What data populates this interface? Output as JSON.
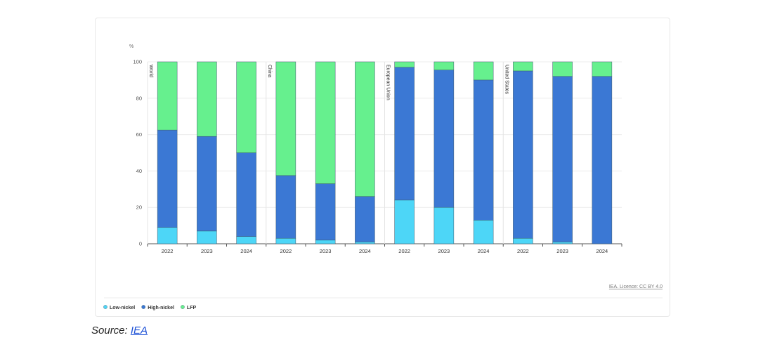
{
  "licence_text": "IEA. Licence: CC BY 4.0",
  "source": {
    "label": "Source:",
    "link_text": "IEA"
  },
  "colors": {
    "Low-nickel": "#4dd6f7",
    "High-nickel": "#3b78d4",
    "LFP": "#66f08e"
  },
  "chart_data": {
    "type": "bar",
    "stacked": true,
    "ylabel": "%",
    "ylim": [
      0,
      100
    ],
    "yticks": [
      0,
      20,
      40,
      60,
      80,
      100
    ],
    "grid": true,
    "legend_position": "bottom-left",
    "groups": [
      "World",
      "China",
      "European Union",
      "United States"
    ],
    "categories": [
      "2022",
      "2023",
      "2024",
      "2022",
      "2023",
      "2024",
      "2022",
      "2023",
      "2024",
      "2022",
      "2023",
      "2024"
    ],
    "series": [
      {
        "name": "Low-nickel",
        "values": [
          9,
          7,
          4,
          3,
          2,
          1,
          24,
          20,
          13,
          3,
          1,
          0
        ]
      },
      {
        "name": "High-nickel",
        "values": [
          53.5,
          52,
          46,
          34.5,
          31,
          25,
          73,
          75.5,
          77,
          92,
          91,
          92
        ]
      },
      {
        "name": "LFP",
        "values": [
          37.5,
          41,
          50,
          62.5,
          67,
          74,
          3,
          4.5,
          10,
          5,
          8,
          8
        ]
      }
    ]
  }
}
